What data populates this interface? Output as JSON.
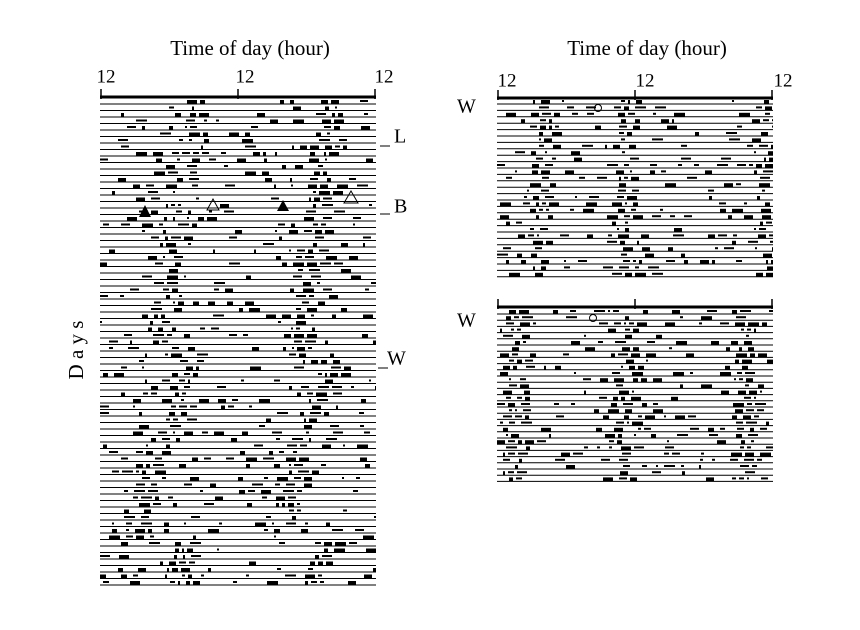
{
  "left_panel": {
    "axis_title": "Time of day (hour)",
    "tick_labels": [
      "12",
      "12",
      "12"
    ],
    "markers": [
      "L",
      "B",
      "W"
    ],
    "y_label": "D a y s"
  },
  "right_panel": {
    "axis_title": "Time of day (hour)",
    "tick_labels": [
      "12",
      "12",
      "12"
    ],
    "markers": [
      "W",
      "W"
    ]
  }
}
